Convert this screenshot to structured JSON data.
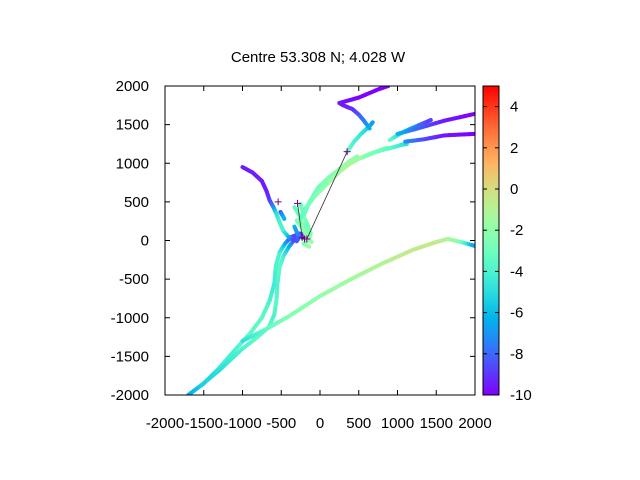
{
  "chart_data": {
    "type": "scatter",
    "title": "Centre 53.308 N; 4.028  W",
    "xlabel": "",
    "ylabel": "",
    "xlim": [
      -2000,
      2000
    ],
    "ylim": [
      -2000,
      2000
    ],
    "x_ticks": [
      -2000,
      -1500,
      -1000,
      -500,
      0,
      500,
      1000,
      1500,
      2000
    ],
    "x_tick_labels": [
      "-2000",
      "-1500",
      "-1000",
      "-500",
      "0",
      "500",
      "1000",
      "1500",
      "2000"
    ],
    "y_ticks": [
      2000,
      1500,
      1000,
      500,
      0,
      -500,
      -1000,
      -1500,
      -2000
    ],
    "y_tick_labels": [
      "2000",
      "1500",
      "1000",
      "500",
      "0",
      "-500",
      "-1000",
      "-1500",
      "-2000"
    ],
    "grid": false,
    "colorbar": {
      "range": [
        -10,
        5
      ],
      "ticks": [
        4,
        2,
        0,
        -2,
        -4,
        -6,
        -8,
        -10
      ],
      "tick_labels": [
        "4",
        "2",
        "0",
        "-2",
        "-4",
        "-6",
        "-8",
        "-10"
      ],
      "palette": "rainbow"
    },
    "series": [
      {
        "tracks": [
          [
            [
              -1700,
              -2000,
              -6.5
            ],
            [
              -1500,
              -1850,
              -5.5
            ],
            [
              -1300,
              -1650,
              -4.5
            ],
            [
              -1100,
              -1420,
              -4
            ],
            [
              -900,
              -1200,
              -3.5
            ],
            [
              -750,
              -1000,
              -3.5
            ],
            [
              -650,
              -780,
              -4
            ],
            [
              -590,
              -560,
              -4.5
            ],
            [
              -570,
              -330,
              -4
            ],
            [
              -520,
              -150,
              -4
            ],
            [
              -450,
              -40,
              -6
            ],
            [
              -380,
              40,
              -8.5
            ],
            [
              -260,
              90,
              -9
            ],
            [
              -190,
              70,
              -8.5
            ]
          ],
          [
            [
              -1540,
              -1880,
              -5.5
            ],
            [
              -1300,
              -1680,
              -5
            ],
            [
              -1000,
              -1400,
              -4
            ],
            [
              -820,
              -1260,
              -3.5
            ],
            [
              -660,
              -1120,
              -3.5
            ],
            [
              -590,
              -960,
              -4
            ],
            [
              -560,
              -760,
              -3.5
            ],
            [
              -550,
              -560,
              -4
            ],
            [
              -520,
              -340,
              -3.5
            ],
            [
              -470,
              -200,
              -4
            ],
            [
              -400,
              -80,
              -6
            ],
            [
              -330,
              10,
              -8
            ],
            [
              -260,
              50,
              -9
            ],
            [
              -200,
              40,
              -8.5
            ]
          ],
          [
            [
              -1000,
              -1300,
              -5
            ],
            [
              -700,
              -1150,
              -3.5
            ],
            [
              -400,
              -980,
              -2.5
            ],
            [
              0,
              -720,
              -2
            ],
            [
              400,
              -500,
              -1.5
            ],
            [
              800,
              -300,
              -1
            ],
            [
              1200,
              -120,
              -0.5
            ],
            [
              1500,
              -20,
              -0.5
            ],
            [
              1650,
              20,
              -1
            ],
            [
              1820,
              -20,
              -2.5
            ],
            [
              2000,
              -70,
              -7
            ]
          ]
        ]
      },
      {
        "tracks": [
          [
            [
              -1000,
              950,
              -9.5
            ],
            [
              -870,
              880,
              -9.5
            ],
            [
              -750,
              770,
              -9.5
            ],
            [
              -690,
              640,
              -9.5
            ],
            [
              -650,
              520,
              -9
            ],
            [
              -600,
              430,
              -7.5
            ],
            [
              -560,
              340,
              -5
            ],
            [
              -520,
              230,
              -4
            ],
            [
              -470,
              120,
              -4
            ],
            [
              -400,
              40,
              -6
            ],
            [
              -330,
              0,
              -9
            ]
          ],
          [
            [
              -250,
              470,
              -3.5
            ],
            [
              -230,
              390,
              -3
            ],
            [
              -200,
              290,
              -2.5
            ],
            [
              -160,
              200,
              -3
            ],
            [
              -120,
              90,
              -2.5
            ],
            [
              -150,
              10,
              -2
            ],
            [
              -210,
              -40,
              -3
            ],
            [
              -140,
              -80,
              -1.5
            ]
          ],
          [
            [
              -330,
              430,
              -3.5
            ],
            [
              -270,
              330,
              -3
            ],
            [
              -240,
              230,
              -2.5
            ],
            [
              -170,
              150,
              -3
            ],
            [
              -130,
              60,
              -2.5
            ]
          ],
          [
            [
              -300,
              260,
              -2.5
            ],
            [
              -250,
              190,
              -2.5
            ],
            [
              -200,
              120,
              -2
            ],
            [
              -170,
              40,
              -2
            ],
            [
              -110,
              -20,
              -2
            ]
          ],
          [
            [
              -200,
              350,
              -3.5
            ],
            [
              -130,
              510,
              -3
            ],
            [
              -20,
              690,
              -3
            ],
            [
              130,
              830,
              -2.5
            ],
            [
              300,
              960,
              -2.5
            ],
            [
              420,
              1030,
              -2.5
            ],
            [
              560,
              1080,
              -3
            ],
            [
              700,
              1140,
              -3
            ],
            [
              860,
              1200,
              -3
            ]
          ],
          [
            [
              -240,
              300,
              -3.5
            ],
            [
              -180,
              430,
              -3
            ],
            [
              -60,
              580,
              -2.5
            ],
            [
              80,
              720,
              -2
            ],
            [
              240,
              880,
              -1.5
            ],
            [
              380,
              990,
              -1
            ],
            [
              500,
              1060,
              -1.5
            ],
            [
              640,
              1120,
              -2.5
            ],
            [
              800,
              1170,
              -3
            ],
            [
              920,
              1200,
              -3.5
            ],
            [
              1060,
              1240,
              -4.5
            ],
            [
              1120,
              1250,
              -5
            ]
          ],
          [
            [
              220,
              900,
              -2
            ],
            [
              360,
              1010,
              -1.5
            ],
            [
              480,
              1090,
              -2
            ]
          ],
          [
            [
              350,
              1150,
              -3
            ],
            [
              440,
              1280,
              -4
            ],
            [
              530,
              1380,
              -4.5
            ],
            [
              640,
              1480,
              -5.5
            ],
            [
              680,
              1530,
              -7
            ]
          ],
          [
            [
              900,
              1300,
              -3
            ],
            [
              1030,
              1380,
              -5
            ],
            [
              1110,
              1420,
              -6
            ],
            [
              1200,
              1460,
              -7
            ],
            [
              1430,
              1560,
              -9
            ]
          ],
          [
            [
              640,
              1450,
              -6
            ],
            [
              560,
              1560,
              -7.5
            ],
            [
              500,
              1630,
              -8
            ],
            [
              420,
              1700,
              -9
            ],
            [
              300,
              1750,
              -9.5
            ],
            [
              250,
              1780,
              -9.5
            ],
            [
              500,
              1850,
              -10
            ],
            [
              760,
              1960,
              -10
            ],
            [
              880,
              2000,
              -10
            ]
          ],
          [
            [
              1000,
              1380,
              -6
            ],
            [
              1260,
              1450,
              -8
            ],
            [
              1600,
              1550,
              -9.5
            ],
            [
              2000,
              1640,
              -10
            ]
          ],
          [
            [
              1100,
              1280,
              -7
            ],
            [
              1340,
              1310,
              -8.5
            ],
            [
              1600,
              1360,
              -9.5
            ],
            [
              2000,
              1380,
              -10
            ]
          ],
          [
            [
              -510,
              370,
              -8.5
            ],
            [
              -460,
              280,
              -6
            ]
          ],
          [
            [
              -330,
              180,
              -6
            ],
            [
              -270,
              40,
              -7.5
            ],
            [
              -300,
              -10,
              -8.5
            ]
          ]
        ]
      }
    ],
    "markers": [
      {
        "x": -540,
        "y": 500
      },
      {
        "x": -290,
        "y": 480
      },
      {
        "x": 350,
        "y": 1150
      },
      {
        "x": -230,
        "y": 40
      },
      {
        "x": -200,
        "y": 20
      },
      {
        "x": -170,
        "y": 20
      }
    ],
    "route": [
      [
        -290,
        480
      ],
      [
        -230,
        40
      ],
      [
        -200,
        20
      ],
      [
        -170,
        20
      ],
      [
        350,
        1150
      ]
    ]
  }
}
